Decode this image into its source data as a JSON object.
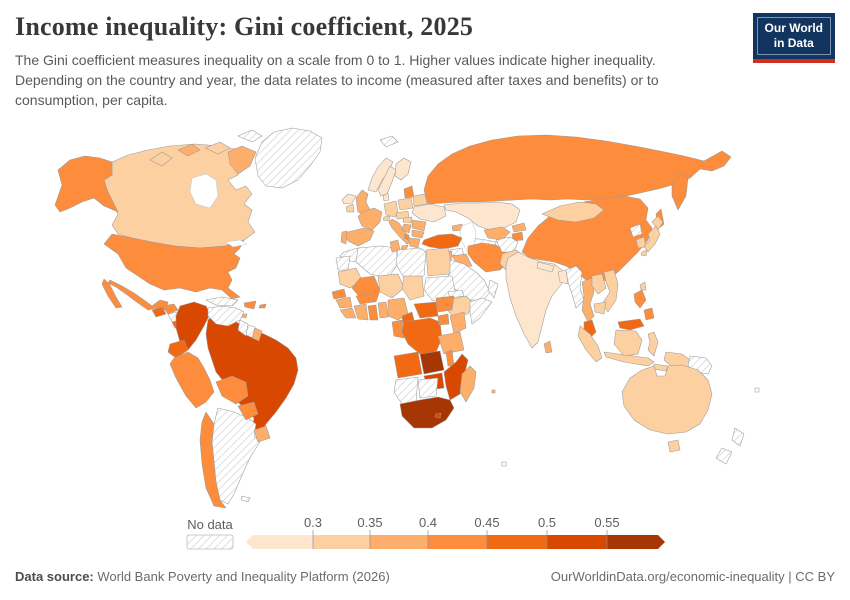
{
  "header": {
    "title": "Income inequality: Gini coefficient, 2025",
    "subtitle": "The Gini coefficient measures inequality on a scale from 0 to 1. Higher values indicate higher inequality. Depending on the country and year, the data relates to income (measured after taxes and benefits) or to consumption, per capita."
  },
  "logo": {
    "line1": "Our World",
    "line2": "in Data",
    "bg_color": "#12355f",
    "accent_color": "#d0301f"
  },
  "legend": {
    "no_data_label": "No data",
    "ticks": [
      "0.3",
      "0.35",
      "0.4",
      "0.45",
      "0.5",
      "0.55"
    ]
  },
  "footer": {
    "datasource_label": "Data source:",
    "datasource_value": " World Bank Poverty and Inequality Platform (2026)",
    "link": "OurWorldinData.org/economic-inequality",
    "separator": " | ",
    "license": "CC BY"
  },
  "chart_data": {
    "type": "choropleth-world-map",
    "title": "Income inequality: Gini coefficient, 2025",
    "legend_position": "bottom",
    "bins": [
      {
        "id": "b1",
        "range": "<0.3",
        "color": "#fee6ce"
      },
      {
        "id": "b2",
        "range": "0.3–0.35",
        "color": "#fdd0a2"
      },
      {
        "id": "b3",
        "range": "0.35–0.4",
        "color": "#fdae6b"
      },
      {
        "id": "b4",
        "range": "0.4–0.45",
        "color": "#fd8d3c"
      },
      {
        "id": "b5",
        "range": "0.45–0.5",
        "color": "#f16913"
      },
      {
        "id": "b6",
        "range": "0.5–0.55",
        "color": "#d94801"
      },
      {
        "id": "b7",
        "range": ">0.55",
        "color": "#a63603"
      }
    ],
    "no_data": {
      "id": "nd",
      "label": "No data",
      "pattern": "diagonal-hatch",
      "line_color": "#d6d6d6",
      "border_color": "#bcbcbc"
    },
    "countries": {
      "alaska": "b4",
      "canada": "b2",
      "arctic1": "b2",
      "arctic2": "b3",
      "arctic3": "b2",
      "baffin": "b3",
      "ellesmere": "nd",
      "greenland": "nd",
      "svalbard": "nd",
      "usa": "b4",
      "mexico": "b4",
      "guatemala": "b5",
      "honduras": "b4",
      "nicaragua": "nd",
      "costarica": "b5",
      "panama": "b6",
      "cuba": "nd",
      "jamaica": "b3",
      "hispaniola": "b4",
      "puertorico": "b4",
      "trinidad": "b3",
      "colombia": "b6",
      "venezuela": "nd",
      "guyana": "nd",
      "suriname": "nd",
      "frguiana": "b3",
      "ecuador": "b5",
      "peru": "b4",
      "brazil": "b6",
      "bolivia": "b4",
      "paraguay": "b4",
      "uruguay": "b3",
      "argentina": "nd",
      "chile": "b4",
      "falklands": "nd",
      "iceland": "b1",
      "ireland": "b2",
      "uk": "b3",
      "norway": "b1",
      "sweden": "b1",
      "finland": "b1",
      "denmark": "b1",
      "germany": "b2",
      "france": "b3",
      "spain": "b3",
      "portugal": "b3",
      "italy": "b3",
      "sicily": "b3",
      "switzerland": "b2",
      "austria": "b2",
      "poland": "b2",
      "baltics": "b4",
      "belarus": "b2",
      "ukraine": "b1",
      "romania": "b3",
      "hungary": "b2",
      "serbia": "b3",
      "albania": "b4",
      "bulgaria": "b3",
      "greece": "b3",
      "russia": "b4",
      "kamchatka": "b4",
      "sakhalin": "b4",
      "kazakhstan": "b1",
      "uzbekistan": "b3",
      "turkmenistan": "nd",
      "kyrgyzstan": "b3",
      "tajikistan": "b4",
      "caucasus": "b3",
      "turkey": "b5",
      "syria": "nd",
      "iraq": "b3",
      "iran": "b4",
      "saudi": "nd",
      "yemen": "nd",
      "oman": "nd",
      "jordan": "b3",
      "afghanistan": "nd",
      "pakistan": "b2",
      "india": "b1",
      "nepal": "b1",
      "bangladesh": "b1",
      "srilanka": "b3",
      "myanmar": "nd",
      "thailand": "b3",
      "laos": "b2",
      "vietnam": "b2",
      "cambodia": "b2",
      "malaysia": "b5",
      "borneomy": "b5",
      "sumatra": "b2",
      "java": "b2",
      "borneoid": "b2",
      "sulawesi": "b2",
      "westpapua": "b2",
      "timor": "b2",
      "png": "nd",
      "philippines1": "b4",
      "philippines2": "b4",
      "taiwan": "b2",
      "china": "b4",
      "mongolia": "b2",
      "northkorea": "nd",
      "southkorea": "b2",
      "hokkaido": "b2",
      "honshu": "b2",
      "kyushu": "b2",
      "morocco": "nd",
      "algeria": "nd",
      "tunisia": "b3",
      "libya": "nd",
      "egypt": "b2",
      "westsahara": "nd",
      "mauritania": "b2",
      "mali": "b4",
      "niger": "b2",
      "chad": "b2",
      "sudan": "nd",
      "eritrea": "nd",
      "ethiopia": "b2",
      "somalia": "nd",
      "senegal": "b4",
      "guinea": "b3",
      "sierraleone": "b3",
      "cotedivoire": "b3",
      "ghana": "b4",
      "togo": "b3",
      "burkina": "b4",
      "nigeria": "b3",
      "cameroon": "b5",
      "car": "b5",
      "southsudan": "b4",
      "gabon": "b4",
      "drc": "b5",
      "uganda": "b4",
      "kenya": "b3",
      "tanzania": "b3",
      "angola": "b5",
      "zambia": "b7",
      "malawi": "b4",
      "mozambique": "b6",
      "zimbabwe": "b6",
      "namibia": "nd",
      "botswana": "nd",
      "southafrica": "b7",
      "lesotho": "b6",
      "madagascar": "b3",
      "mauritius": "b3",
      "australia": "b2",
      "tasmania": "b2",
      "nznorth": "nd",
      "nzsouth": "nd",
      "fiji": "nd",
      "kerguelen": "nd"
    }
  }
}
